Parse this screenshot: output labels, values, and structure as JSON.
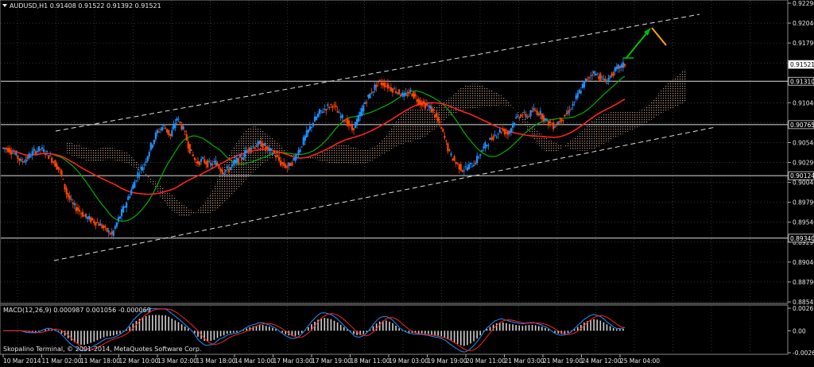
{
  "symbol_header": "AUDUSD,H1  0.91408 0.91522 0.91392 0.91521",
  "macd_header": "MACD(12,26,9) 0.000987 0.001056 -0.000069",
  "copyright": "Skopalino Terminal, © 2001-2014, MetaQuotes Software Corp.",
  "price_axis": {
    "ticks": [
      "0.92290",
      "0.92040",
      "0.91790",
      "0.91540",
      "0.91310",
      "0.91040",
      "0.90790",
      "0.90540",
      "0.90290",
      "0.90040",
      "0.89790",
      "0.89540",
      "0.89290",
      "0.89040",
      "0.88790",
      "0.88540"
    ],
    "ymax": 0.9229,
    "ymin": 0.8854
  },
  "price_labels": [
    {
      "value": "0.91521",
      "price": 0.91521,
      "highlight": true
    },
    {
      "value": "0.91310",
      "price": 0.9131,
      "highlight": false
    },
    {
      "value": "0.90765",
      "price": 0.90765,
      "highlight": false
    },
    {
      "value": "0.90124",
      "price": 0.90124,
      "highlight": false
    },
    {
      "value": "0.89340",
      "price": 0.8934,
      "highlight": false
    }
  ],
  "macd_axis": {
    "ticks": [
      "0.002677",
      "0.00",
      "-0.002604"
    ],
    "ymax": 0.002677,
    "ymin": -0.002604
  },
  "time_axis": [
    "10 Mar 2014",
    "11 Mar 02:00",
    "11 Mar 18:00",
    "12 Mar 10:00",
    "13 Mar 02:00",
    "13 Mar 18:00",
    "14 Mar 10:00",
    "17 Mar 03:00",
    "17 Mar 19:00",
    "18 Mar 11:00",
    "19 Mar 03:00",
    "19 Mar 19:00",
    "20 Mar 11:00",
    "21 Mar 03:00",
    "21 Mar 19:00",
    "24 Mar 12:00",
    "25 Mar 04:00"
  ],
  "colors": {
    "bull": "#1e90ff",
    "bear": "#ff4500",
    "ma_fast": "#00b000",
    "ma_slow": "#ff2020",
    "grid": "#555555",
    "ichimoku": "#f0c0a0",
    "channel": "#dddddd",
    "arrow_up": "#00c000",
    "arrow_down": "#ffa500"
  },
  "chart_data": {
    "type": "candlestick",
    "close_path": [
      0.9047,
      0.9046,
      0.904,
      0.903,
      0.9035,
      0.9043,
      0.9046,
      0.904,
      0.903,
      0.9018,
      0.899,
      0.8975,
      0.8968,
      0.896,
      0.8956,
      0.8952,
      0.8945,
      0.8938,
      0.8958,
      0.8975,
      0.8995,
      0.9015,
      0.9028,
      0.905,
      0.9068,
      0.9075,
      0.9062,
      0.9085,
      0.907,
      0.9045,
      0.9028,
      0.9032,
      0.9026,
      0.9029,
      0.9018,
      0.9021,
      0.903,
      0.9035,
      0.9047,
      0.905,
      0.9053,
      0.9045,
      0.904,
      0.9028,
      0.9023,
      0.9032,
      0.9048,
      0.9065,
      0.908,
      0.9092,
      0.9098,
      0.9102,
      0.9088,
      0.9082,
      0.907,
      0.9085,
      0.9105,
      0.9118,
      0.913,
      0.9127,
      0.9122,
      0.9118,
      0.9112,
      0.9118,
      0.9108,
      0.9102,
      0.9098,
      0.9085,
      0.9065,
      0.904,
      0.9028,
      0.902,
      0.9024,
      0.903,
      0.9045,
      0.9055,
      0.9064,
      0.907,
      0.9065,
      0.9082,
      0.909,
      0.9087,
      0.9095,
      0.909,
      0.908,
      0.9075,
      0.9082,
      0.909,
      0.9102,
      0.9118,
      0.9132,
      0.9142,
      0.9138,
      0.913,
      0.914,
      0.9148,
      0.9152
    ],
    "ylim": [
      0.8854,
      0.9229
    ]
  }
}
